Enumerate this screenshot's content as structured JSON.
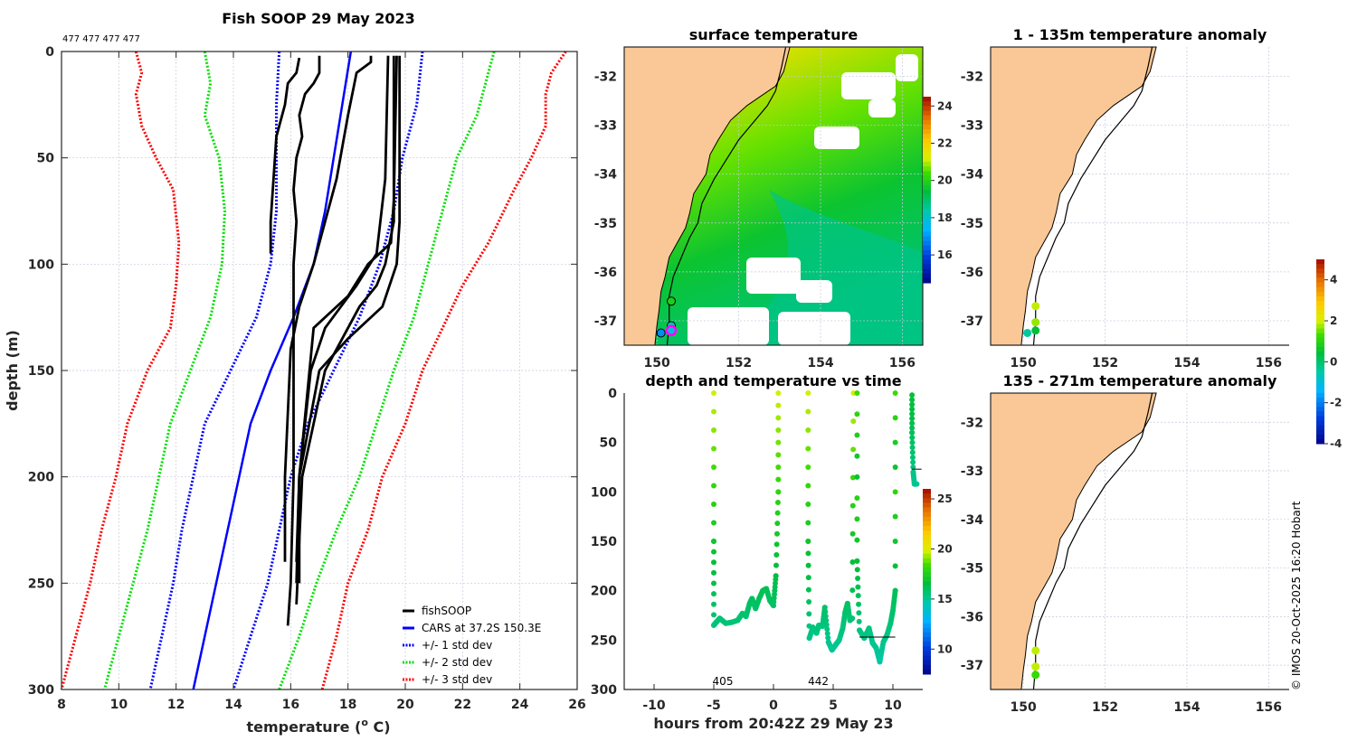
{
  "chart_data": [
    {
      "id": "profile",
      "type": "line",
      "title": "Fish SOOP 29 May 2023",
      "annotation": "477 477 477 477",
      "xlabel": "temperature (° C)",
      "xlabel_prefix": "temperature (",
      "xlabel_sup": "o",
      "xlabel_suffix": " C)",
      "ylabel": "depth (m)",
      "xlim": [
        8,
        26
      ],
      "ylim": [
        0,
        300
      ],
      "y_reversed": true,
      "xticks": [
        8,
        10,
        12,
        14,
        16,
        18,
        20,
        22,
        24,
        26
      ],
      "yticks": [
        0,
        50,
        100,
        150,
        200,
        250,
        300
      ],
      "grid": true,
      "legend_position": "bottom-right",
      "legend": [
        {
          "label": "fishSOOP",
          "color": "#000000",
          "style": "solid"
        },
        {
          "label": "CARS at 37.2S 150.3E",
          "color": "#0000ff",
          "style": "solid"
        },
        {
          "label": "+/- 1 std dev",
          "color": "#0000ff",
          "style": "dotted"
        },
        {
          "label": "+/- 2 std dev",
          "color": "#00e000",
          "style": "dotted"
        },
        {
          "label": "+/- 3 std dev",
          "color": "#ff0000",
          "style": "dotted"
        }
      ],
      "cars_mean": {
        "depth": [
          0,
          25,
          50,
          75,
          100,
          125,
          150,
          175,
          200,
          225,
          250,
          275,
          300
        ],
        "temp": [
          18.1,
          17.8,
          17.5,
          17.2,
          16.8,
          16.1,
          15.3,
          14.6,
          14.2,
          13.8,
          13.4,
          13.0,
          12.6
        ]
      },
      "std_envelopes": [
        {
          "name": "-1 std",
          "color": "#0000ff",
          "depth": [
            0,
            25,
            50,
            75,
            100,
            125,
            150,
            175,
            200,
            225,
            250,
            275,
            300
          ],
          "temp": [
            15.6,
            15.5,
            15.5,
            15.5,
            15.3,
            14.8,
            13.9,
            13.0,
            12.6,
            12.2,
            11.9,
            11.5,
            11.1
          ]
        },
        {
          "name": "+1 std",
          "color": "#0000ff",
          "depth": [
            0,
            25,
            50,
            75,
            100,
            125,
            150,
            175,
            200,
            225,
            250,
            275,
            300
          ],
          "temp": [
            20.6,
            20.4,
            19.9,
            19.6,
            19.1,
            18.4,
            17.5,
            16.6,
            16.0,
            15.6,
            15.2,
            14.6,
            14.0
          ]
        },
        {
          "name": "-2 std",
          "color": "#00e000",
          "depth": [
            0,
            15,
            30,
            50,
            75,
            100,
            125,
            150,
            175,
            200,
            225,
            250,
            275,
            300
          ],
          "temp": [
            13.0,
            13.2,
            13.0,
            13.5,
            13.7,
            13.6,
            13.2,
            12.5,
            11.8,
            11.4,
            11.0,
            10.5,
            10.0,
            9.5
          ]
        },
        {
          "name": "+2 std",
          "color": "#00e000",
          "depth": [
            0,
            15,
            30,
            50,
            75,
            100,
            125,
            150,
            175,
            200,
            225,
            250,
            275,
            300
          ],
          "temp": [
            23.1,
            22.8,
            22.5,
            21.8,
            21.3,
            20.8,
            20.3,
            19.6,
            19.0,
            18.4,
            17.6,
            16.9,
            16.3,
            15.6
          ]
        },
        {
          "name": "-3 std",
          "color": "#ff0000",
          "depth": [
            0,
            10,
            20,
            35,
            50,
            65,
            90,
            110,
            130,
            150,
            175,
            200,
            225,
            250,
            275,
            300
          ],
          "temp": [
            10.6,
            10.8,
            10.6,
            10.8,
            11.3,
            11.9,
            12.1,
            12.0,
            11.8,
            11.0,
            10.3,
            9.9,
            9.4,
            9.0,
            8.5,
            8.0
          ]
        },
        {
          "name": "+3 std",
          "color": "#ff0000",
          "depth": [
            0,
            10,
            20,
            35,
            50,
            65,
            90,
            110,
            130,
            150,
            175,
            200,
            225,
            250,
            275,
            300
          ],
          "temp": [
            25.6,
            25.1,
            24.9,
            24.9,
            24.4,
            23.8,
            22.9,
            22.0,
            21.3,
            20.6,
            20.0,
            19.2,
            18.7,
            18.0,
            17.6,
            17.1
          ]
        }
      ],
      "profiles": [
        {
          "depth": [
            3,
            10,
            15,
            25,
            40,
            60,
            80,
            95
          ],
          "temp": [
            16.3,
            16.2,
            15.9,
            15.8,
            15.5,
            15.4,
            15.3,
            15.3
          ]
        },
        {
          "depth": [
            2,
            10,
            15,
            20,
            30,
            40,
            50,
            65,
            80,
            100,
            120,
            150,
            200,
            250,
            270
          ],
          "temp": [
            17.0,
            17.0,
            16.8,
            16.5,
            16.3,
            16.4,
            16.2,
            16.1,
            16.2,
            16.1,
            16.1,
            16.1,
            16.1,
            16.0,
            15.9
          ]
        },
        {
          "depth": [
            2,
            5,
            10,
            30,
            60,
            80,
            100,
            120,
            140,
            200,
            240
          ],
          "temp": [
            18.8,
            18.8,
            18.3,
            18.0,
            17.6,
            17.2,
            16.8,
            16.3,
            16.0,
            15.8,
            15.8
          ]
        },
        {
          "depth": [
            2,
            80,
            100,
            110,
            120,
            150,
            200,
            260
          ],
          "temp": [
            19.6,
            19.6,
            19.3,
            19.0,
            18.4,
            17.2,
            16.4,
            16.2
          ]
        },
        {
          "depth": [
            2,
            60,
            95,
            110,
            130,
            150,
            200,
            250
          ],
          "temp": [
            19.4,
            19.3,
            19.0,
            18.3,
            17.2,
            16.7,
            16.3,
            16.2
          ]
        },
        {
          "depth": [
            2,
            70,
            90,
            100,
            115,
            130,
            200,
            240
          ],
          "temp": [
            19.7,
            19.6,
            19.5,
            18.7,
            18.0,
            16.8,
            16.3,
            16.2
          ]
        },
        {
          "depth": [
            2,
            80,
            100,
            120,
            135,
            150,
            200,
            250
          ],
          "temp": [
            19.8,
            19.8,
            19.7,
            19.2,
            18.0,
            17.0,
            16.3,
            16.3
          ]
        }
      ]
    },
    {
      "id": "surface-temperature",
      "type": "heatmap",
      "title": "surface temperature",
      "xlim": [
        149.2,
        156.5
      ],
      "ylim": [
        -37.5,
        -31.4
      ],
      "xticks": [
        150,
        152,
        154,
        156
      ],
      "yticks": [
        -32,
        -33,
        -34,
        -35,
        -36,
        -37
      ],
      "colorbar": {
        "min": 14.5,
        "max": 24.5,
        "ticks": [
          16,
          18,
          20,
          22,
          24
        ]
      },
      "stations": [
        {
          "lon": 150.35,
          "lat": -36.6,
          "temp": 20.0
        },
        {
          "lon": 150.35,
          "lat": -37.1,
          "temp": 18.5
        },
        {
          "lon": 150.1,
          "lat": -37.25,
          "temp": 17.0
        },
        {
          "lon": 150.35,
          "lat": -37.2,
          "temp": 18.0,
          "highlight": true
        }
      ]
    },
    {
      "id": "depth-time",
      "type": "scatter",
      "title": "depth and temperature vs time",
      "xlabel": "hours from 20:42Z 29 May 23",
      "xlim": [
        -12.5,
        12.5
      ],
      "ylim": [
        0,
        300
      ],
      "y_reversed": true,
      "xticks": [
        -10,
        -5,
        0,
        5,
        10
      ],
      "yticks": [
        0,
        50,
        100,
        150,
        200,
        250,
        300
      ],
      "colorbar": {
        "min": 7.5,
        "max": 26,
        "ticks": [
          10,
          15,
          20,
          25
        ]
      },
      "annotations": [
        {
          "x": -5,
          "label": "405"
        },
        {
          "x": 3,
          "label": "442"
        }
      ],
      "tracks": [
        {
          "time": [
            -5.0,
            -5.0,
            -5.0,
            -4.8,
            -4.5,
            -4.0,
            -3.5,
            -3.0,
            -2.6,
            -2.3,
            -2.0,
            -1.8,
            -1.5,
            -1.2,
            -0.9,
            -0.6,
            -0.3,
            0.0,
            0.2,
            0.4,
            0.4
          ],
          "depth": [
            0,
            150,
            235,
            232,
            228,
            233,
            232,
            230,
            223,
            226,
            213,
            208,
            218,
            208,
            200,
            198,
            210,
            215,
            185,
            100,
            0
          ]
        },
        {
          "time": [
            2.9,
            2.9,
            3.0,
            3.3,
            3.6,
            3.8,
            4.1,
            4.3,
            4.6,
            4.9,
            5.2,
            5.5,
            5.8,
            6.0,
            6.2,
            6.4,
            6.6,
            6.7
          ],
          "depth": [
            0,
            150,
            248,
            237,
            243,
            235,
            236,
            217,
            252,
            260,
            255,
            250,
            238,
            222,
            213,
            230,
            228,
            0
          ]
        },
        {
          "time": [
            7.0,
            7.0,
            7.2,
            7.6,
            8.0,
            8.3,
            8.6,
            8.9,
            9.2,
            9.5,
            9.8,
            10.0,
            10.2,
            10.2
          ],
          "depth": [
            0,
            170,
            240,
            248,
            238,
            253,
            258,
            272,
            252,
            245,
            233,
            220,
            200,
            0
          ]
        },
        {
          "time": [
            11.6,
            11.6,
            11.7,
            11.8,
            12.0
          ],
          "depth": [
            2,
            40,
            80,
            92,
            92
          ]
        }
      ]
    },
    {
      "id": "anomaly-1-135",
      "type": "scatter",
      "title": "1 - 135m temperature anomaly",
      "xlim": [
        149.2,
        156.5
      ],
      "ylim": [
        -37.5,
        -31.4
      ],
      "xticks": [
        150,
        152,
        154,
        156
      ],
      "yticks": [
        -32,
        -33,
        -34,
        -35,
        -36,
        -37
      ],
      "points": [
        {
          "lon": 150.3,
          "lat": -36.7,
          "anomaly": 2.0
        },
        {
          "lon": 150.3,
          "lat": -37.03,
          "anomaly": 1.8
        },
        {
          "lon": 150.3,
          "lat": -37.2,
          "anomaly": 0.5
        },
        {
          "lon": 150.1,
          "lat": -37.25,
          "anomaly": -0.3
        }
      ]
    },
    {
      "id": "anomaly-135-271",
      "type": "scatter",
      "title": "135 - 271m temperature anomaly",
      "xlim": [
        149.2,
        156.5
      ],
      "ylim": [
        -37.5,
        -31.4
      ],
      "xticks": [
        150,
        152,
        154,
        156
      ],
      "yticks": [
        -32,
        -33,
        -34,
        -35,
        -36,
        -37
      ],
      "points": [
        {
          "lon": 150.3,
          "lat": -36.7,
          "anomaly": 2.0
        },
        {
          "lon": 150.3,
          "lat": -37.03,
          "anomaly": 2.0
        },
        {
          "lon": 150.3,
          "lat": -37.2,
          "anomaly": 1.3
        }
      ]
    }
  ],
  "anomaly_colorbar": {
    "min": -4,
    "max": 5,
    "ticks": [
      4,
      2,
      0,
      -2,
      -4
    ]
  },
  "credit": "© IMOS 20-Oct-2025 16:20 Hobart",
  "colors": {
    "land": "#f9c896",
    "frame": "#262626",
    "grid": "#c8c8dc"
  }
}
